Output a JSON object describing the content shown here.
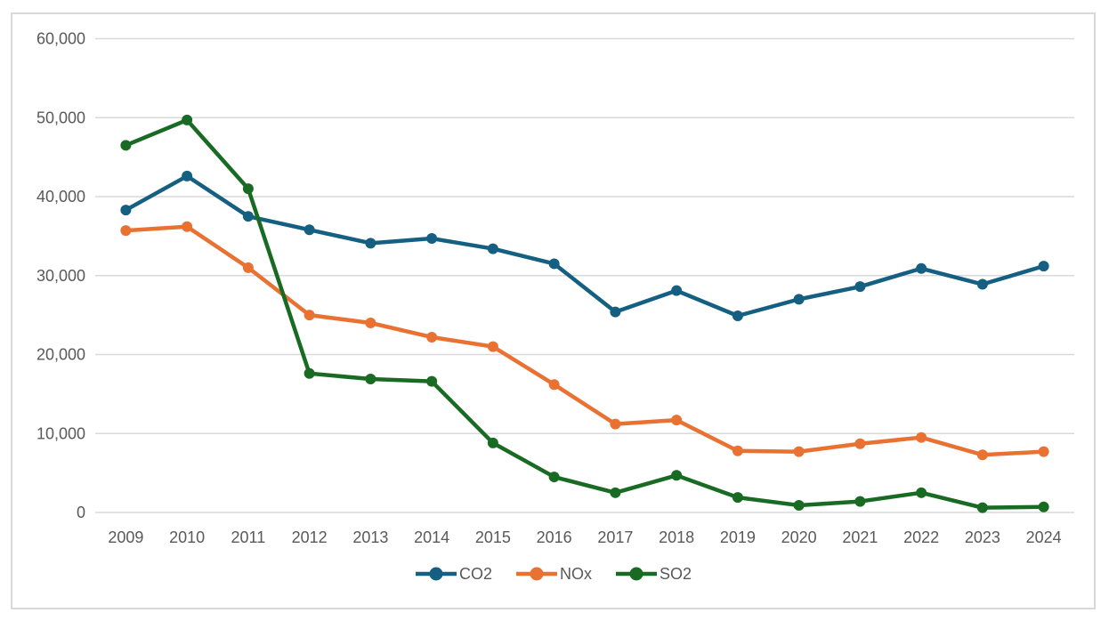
{
  "chart_data": {
    "type": "line",
    "title": "",
    "xlabel": "",
    "ylabel": "",
    "x": [
      "2009",
      "2010",
      "2011",
      "2012",
      "2013",
      "2014",
      "2015",
      "2016",
      "2017",
      "2018",
      "2019",
      "2020",
      "2021",
      "2022",
      "2023",
      "2024"
    ],
    "series": [
      {
        "name": "CO2",
        "color": "#156082",
        "values": [
          38300,
          42600,
          37500,
          35800,
          34100,
          34700,
          33400,
          31500,
          25400,
          28100,
          24900,
          27000,
          28600,
          30900,
          28900,
          31200
        ]
      },
      {
        "name": "NOx",
        "color": "#E97132",
        "values": [
          35700,
          36200,
          31000,
          25000,
          24000,
          22200,
          21000,
          16200,
          11200,
          11700,
          7800,
          7700,
          8700,
          9500,
          7300,
          7700
        ]
      },
      {
        "name": "SO2",
        "color": "#196B24",
        "values": [
          46500,
          49700,
          41000,
          17600,
          16900,
          16600,
          8800,
          4500,
          2500,
          4700,
          1900,
          900,
          1400,
          2500,
          600,
          700
        ]
      }
    ],
    "ylim": [
      0,
      60000
    ],
    "y_tick_step": 10000,
    "y_tick_labels": [
      "0",
      "10,000",
      "20,000",
      "30,000",
      "40,000",
      "50,000",
      "60,000"
    ],
    "grid": "horizontal",
    "legend_position": "bottom",
    "colors": {
      "gridline": "#D9D9D9",
      "frame_border": "#D9D9D9",
      "axis_label": "#595959",
      "background": "#FFFFFF"
    }
  }
}
